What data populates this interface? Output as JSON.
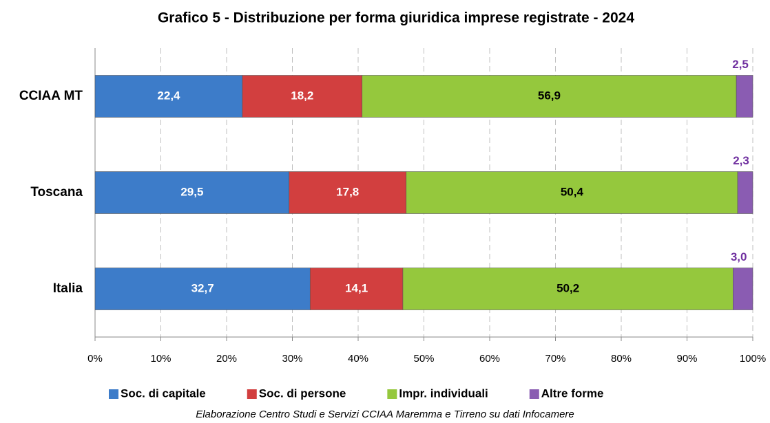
{
  "chart_data": {
    "type": "stacked_bar_horizontal",
    "title": "Grafico 5 - Distribuzione per forma giuridica imprese registrate - 2024",
    "categories": [
      "CCIAA MT",
      "Toscana",
      "Italia"
    ],
    "series": [
      {
        "name": "Soc. di capitale",
        "color": "#3d7cc9",
        "label_color": "#ffffff",
        "values": [
          22.4,
          29.5,
          32.7
        ],
        "value_labels": [
          "22,4",
          "29,5",
          "32,7"
        ]
      },
      {
        "name": "Soc. di persone",
        "color": "#d23f3f",
        "label_color": "#ffffff",
        "values": [
          18.2,
          17.8,
          14.1
        ],
        "value_labels": [
          "18,2",
          "17,8",
          "14,1"
        ]
      },
      {
        "name": "Impr. individuali",
        "color": "#95c83d",
        "label_color": "#000000",
        "values": [
          56.9,
          50.4,
          50.2
        ],
        "value_labels": [
          "56,9",
          "50,4",
          "50,2"
        ]
      },
      {
        "name": "Altre forme",
        "color": "#8a5cb2",
        "label_color": "#7030a0",
        "label_position": "above",
        "values": [
          2.5,
          2.3,
          3.0
        ],
        "value_labels": [
          "2,5",
          "2,3",
          "3,0"
        ]
      }
    ],
    "xlim": [
      0,
      100
    ],
    "xticks": [
      {
        "value": 0,
        "label": "0%"
      },
      {
        "value": 10,
        "label": "10%"
      },
      {
        "value": 20,
        "label": "20%"
      },
      {
        "value": 30,
        "label": "30%"
      },
      {
        "value": 40,
        "label": "40%"
      },
      {
        "value": 50,
        "label": "50%"
      },
      {
        "value": 60,
        "label": "60%"
      },
      {
        "value": 70,
        "label": "70%"
      },
      {
        "value": 80,
        "label": "80%"
      },
      {
        "value": 90,
        "label": "90%"
      },
      {
        "value": 100,
        "label": "100%"
      }
    ],
    "grid": true,
    "legend": "bottom",
    "note": "Elaborazione Centro Studi e Servizi CCIAA Maremma e Tirreno su dati Infocamere"
  }
}
